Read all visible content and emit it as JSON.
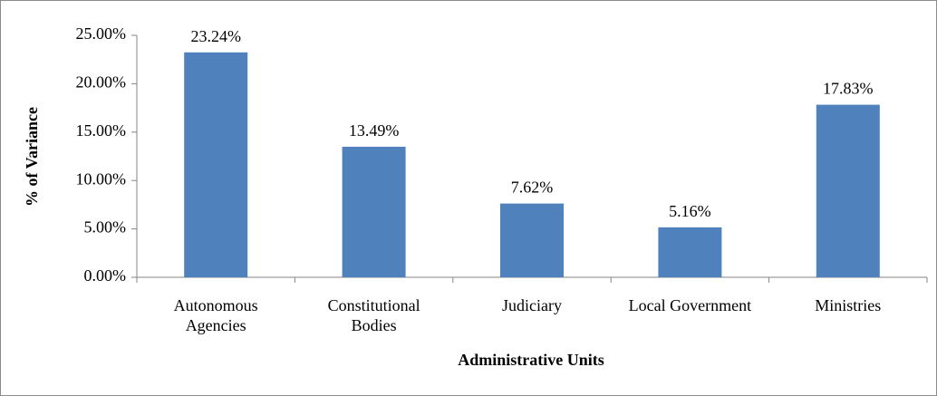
{
  "chart_data": {
    "type": "bar",
    "x_label": "Administrative Units",
    "y_label": "% of Variance",
    "categories": [
      "Autonomous\nAgencies",
      "Constitutional\nBodies",
      "Judiciary",
      "Local Government",
      "Ministries"
    ],
    "values": [
      23.24,
      13.49,
      7.62,
      5.16,
      17.83
    ],
    "value_labels": [
      "23.24%",
      "13.49%",
      "7.62%",
      "5.16%",
      "17.83%"
    ],
    "color": "#4f81bd",
    "ylim": [
      0,
      25
    ],
    "yticks": [
      {
        "value": 0,
        "label": "0.00%"
      },
      {
        "value": 5,
        "label": "5.00%"
      },
      {
        "value": 10,
        "label": "10.00%"
      },
      {
        "value": 15,
        "label": "15.00%"
      },
      {
        "value": 20,
        "label": "20.00%"
      },
      {
        "value": 25,
        "label": "25.00%"
      }
    ]
  }
}
